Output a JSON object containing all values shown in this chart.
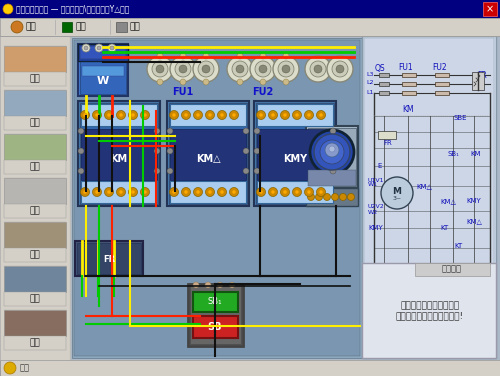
{
  "win_title": "电工技能与实训 — 电动机控制\\u65f6间继电器Y△起动",
  "nav_items": [
    "首页",
    "返回",
    "帮助"
  ],
  "sidebar_items": [
    "器材",
    "电路",
    "原理",
    "布局",
    "连线",
    "运行",
    "据波"
  ],
  "hint_title": "操作提示",
  "hint_text": "将鼠标移到原理图中器件\n符号上查看器件名称和作用!",
  "win_bg": "#d4d0c8",
  "titlebar_bg": "#000080",
  "menubar_bg": "#d4d0c8",
  "sidebar_bg": "#d4d0c8",
  "content_bg": "#aab8c8",
  "photo_bg": "#7a9ab2",
  "schematic_bg": "#ccd8e8",
  "statusbar_bg": "#d4d0c8",
  "component_labels": [
    "KM",
    "KM△",
    "KMY"
  ],
  "wire_colors": [
    "#ff0000",
    "#00bb00",
    "#ffee00",
    "#000000"
  ],
  "contactor_top_color": "#5588cc",
  "contactor_body_color": "#3355aa",
  "terminal_color": "#cc8800"
}
